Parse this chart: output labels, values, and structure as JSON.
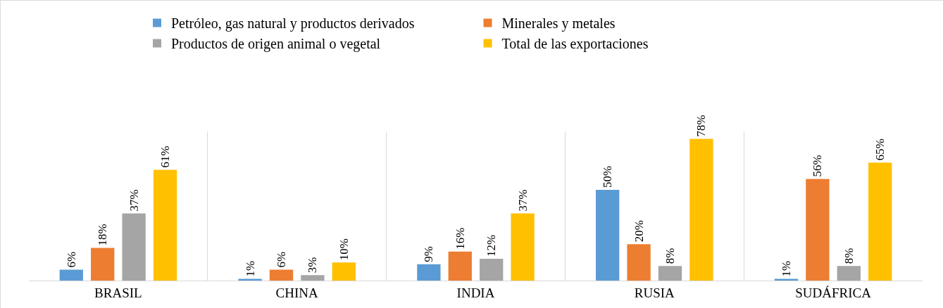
{
  "chart_data": {
    "type": "bar",
    "categories": [
      "BRASIL",
      "CHINA",
      "INDIA",
      "RUSIA",
      "SUDÁFRICA"
    ],
    "series": [
      {
        "name": "Petróleo, gas natural y productos derivados",
        "color": "#5b9bd5",
        "values": [
          6,
          1,
          9,
          50,
          1
        ],
        "value_labels": [
          "6%",
          "1%",
          "9%",
          "50%",
          "1%"
        ]
      },
      {
        "name": "Minerales y metales",
        "color": "#ed7d31",
        "values": [
          18,
          6,
          16,
          20,
          56
        ],
        "value_labels": [
          "18%",
          "6%",
          "16%",
          "20%",
          "56%"
        ]
      },
      {
        "name": "Productos de origen animal o vegetal",
        "color": "#a5a5a5",
        "values": [
          37,
          3,
          12,
          8,
          8
        ],
        "value_labels": [
          "37%",
          "3%",
          "12%",
          "8%",
          "8%"
        ]
      },
      {
        "name": "Total de las exportaciones",
        "color": "#ffc000",
        "values": [
          61,
          10,
          37,
          78,
          65
        ],
        "value_labels": [
          "61%",
          "10%",
          "37%",
          "78%",
          "65%"
        ]
      }
    ],
    "grid": "x",
    "legend": "top"
  }
}
